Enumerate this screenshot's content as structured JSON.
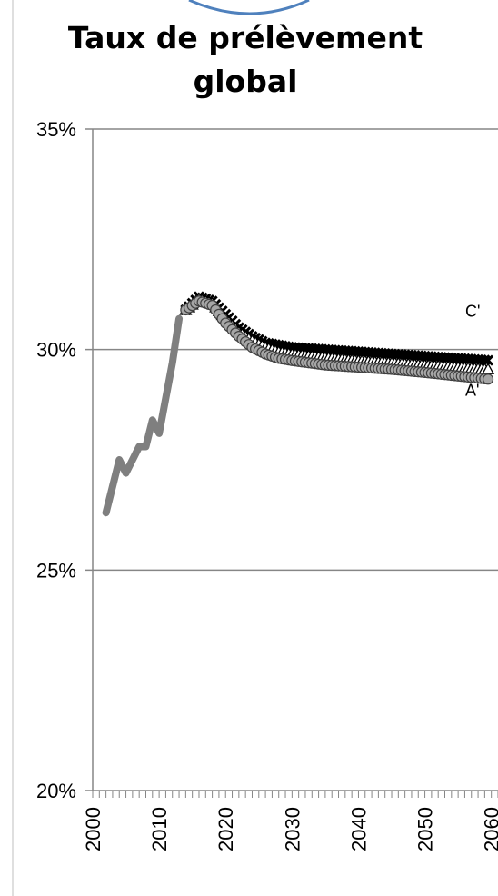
{
  "chart_data": {
    "type": "line",
    "title_line1": "Taux de prélèvement",
    "title_line2": "global",
    "xlabel": "",
    "ylabel": "",
    "xlim": [
      2000,
      2061
    ],
    "ylim": [
      20,
      35
    ],
    "y_ticks": [
      "20%",
      "25%",
      "30%",
      "35%"
    ],
    "x_ticks": [
      "2000",
      "2010",
      "2020",
      "2030",
      "2040",
      "2050",
      "2060"
    ],
    "grid": "horizontal",
    "series": [
      {
        "name": "",
        "style": "historical",
        "color": "#7f7f7f",
        "x": [
          2002,
          2004,
          2005,
          2007,
          2008,
          2009,
          2010,
          2011,
          2012,
          2013
        ],
        "y": [
          26.3,
          27.5,
          27.2,
          27.8,
          27.8,
          28.4,
          28.1,
          28.9,
          29.7,
          30.7
        ]
      },
      {
        "name": "C'",
        "style": "projection",
        "color": "#000000",
        "x": [
          2014,
          2016,
          2018,
          2020,
          2022,
          2024,
          2026,
          2028,
          2030,
          2035,
          2040,
          2045,
          2050,
          2055,
          2060
        ],
        "y": [
          30.9,
          31.2,
          31.1,
          30.8,
          30.5,
          30.3,
          30.15,
          30.1,
          30.05,
          30.0,
          29.95,
          29.9,
          29.85,
          29.8,
          29.75
        ]
      },
      {
        "name": "",
        "style": "projection",
        "color": "#ffffff",
        "x": [
          2014,
          2016,
          2018,
          2020,
          2022,
          2024,
          2026,
          2028,
          2030,
          2035,
          2040,
          2045,
          2050,
          2055,
          2060
        ],
        "y": [
          30.9,
          31.15,
          31.05,
          30.7,
          30.4,
          30.2,
          30.05,
          29.95,
          29.9,
          29.82,
          29.75,
          29.7,
          29.65,
          29.6,
          29.55
        ]
      },
      {
        "name": "A'",
        "style": "projection",
        "color": "#a6a6a6",
        "x": [
          2014,
          2016,
          2018,
          2020,
          2022,
          2024,
          2026,
          2028,
          2030,
          2035,
          2040,
          2045,
          2050,
          2055,
          2060
        ],
        "y": [
          30.9,
          31.1,
          31.0,
          30.6,
          30.3,
          30.05,
          29.9,
          29.8,
          29.75,
          29.65,
          29.6,
          29.55,
          29.48,
          29.4,
          29.32
        ]
      }
    ]
  }
}
